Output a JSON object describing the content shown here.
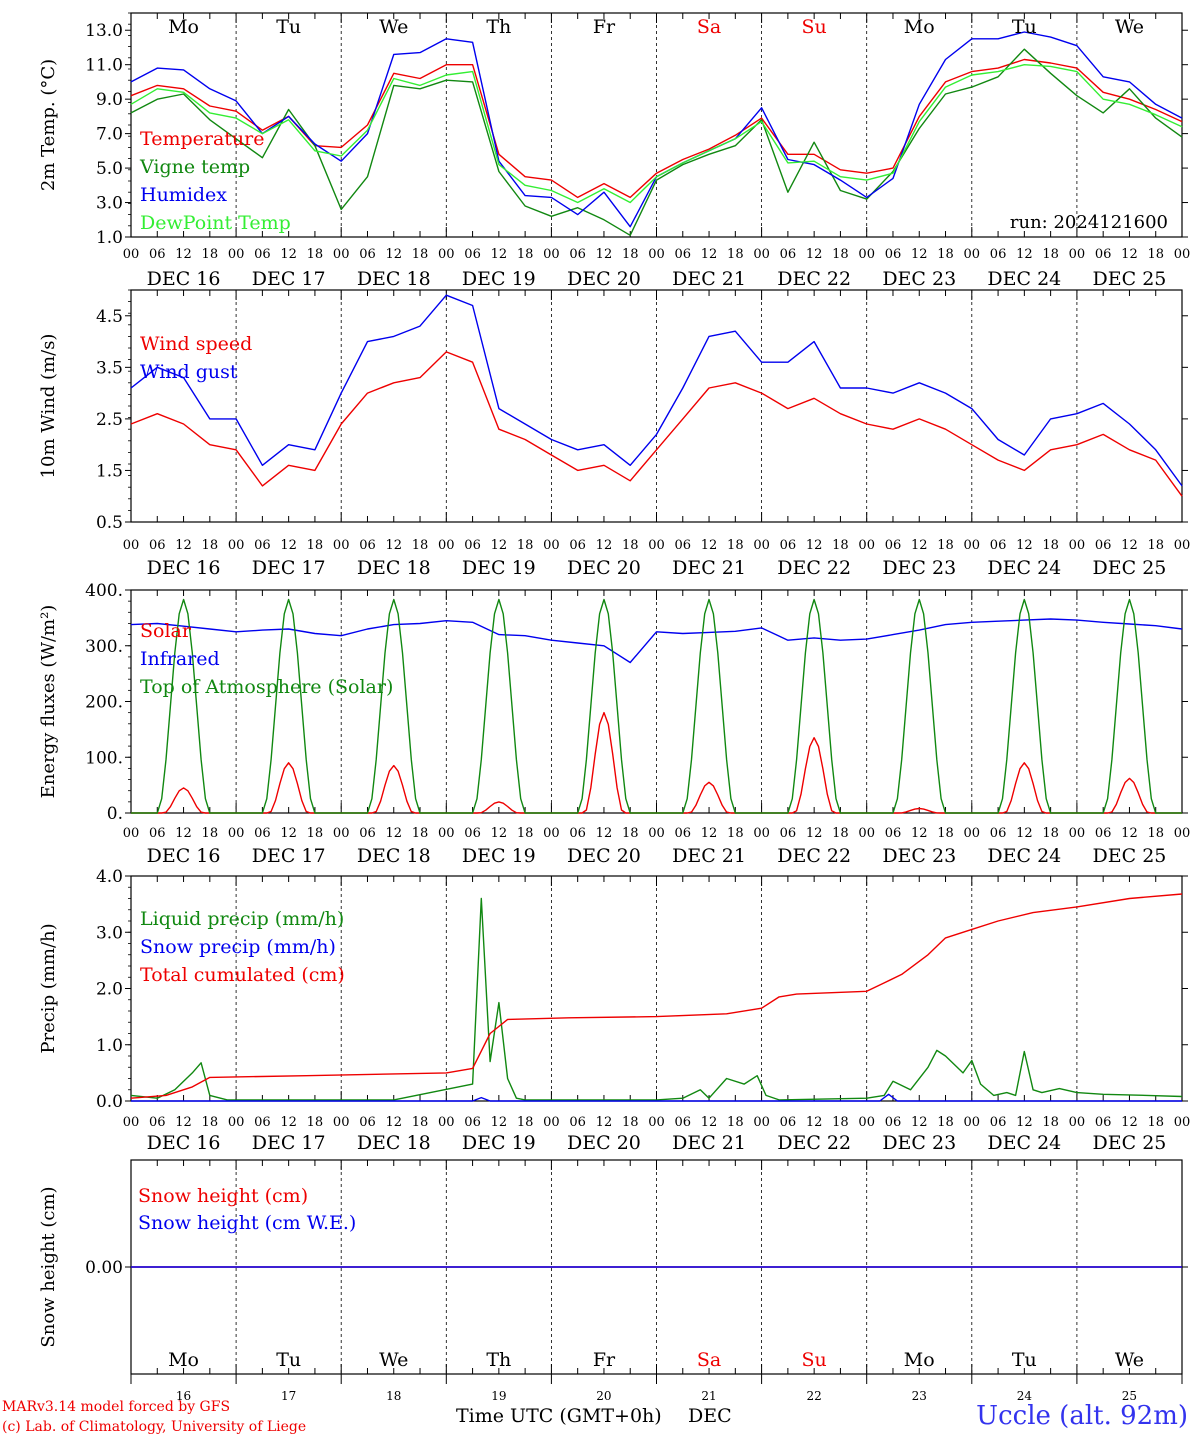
{
  "colors": {
    "red": "#ee0000",
    "green": "#118811",
    "blue": "#0000ee",
    "lightgreen": "#33ee33",
    "axis": "#000000"
  },
  "footer": {
    "model": "MARv3.14 model forced by GFS",
    "copyright": "(c) Lab. of Climatology, University of Liege",
    "xlabel": "Time UTC (GMT+0h)",
    "month": "DEC",
    "station": "Uccle (alt. 92m)"
  },
  "shared_axis": {
    "hour_ticks": [
      "00",
      "06",
      "12",
      "18"
    ],
    "final_tick": "00",
    "date_labels": [
      "DEC 16",
      "DEC 17",
      "DEC 18",
      "DEC 19",
      "DEC 20",
      "DEC 21",
      "DEC 22",
      "DEC 23",
      "DEC 24",
      "DEC 25"
    ],
    "weekdays": [
      "Mo",
      "Tu",
      "We",
      "Th",
      "Fr",
      "Sa",
      "Su",
      "Mo",
      "Tu",
      "We"
    ],
    "weekend": [
      false,
      false,
      false,
      false,
      false,
      true,
      true,
      false,
      false,
      false
    ],
    "day_numbers": [
      "16",
      "17",
      "18",
      "19",
      "20",
      "21",
      "22",
      "23",
      "24",
      "25"
    ]
  },
  "chart_data": [
    {
      "type": "line",
      "id": "temp",
      "ylabel": "2m Temp. (°C)",
      "ylim": [
        1,
        14
      ],
      "yticks": [
        "1.0",
        "3.0",
        "5.0",
        "7.0",
        "9.0",
        "11.0",
        "13.0"
      ],
      "annotation": "run: 2024121600",
      "x_hours": [
        0,
        6,
        12,
        18,
        24,
        30,
        36,
        42,
        48,
        54,
        60,
        66,
        72,
        78,
        84,
        90,
        96,
        102,
        108,
        114,
        120,
        126,
        132,
        138,
        144,
        150,
        156,
        162,
        168,
        174,
        180,
        186,
        192,
        198,
        204,
        210,
        216,
        222,
        228,
        234,
        240
      ],
      "series": [
        {
          "name": "Temperature",
          "color": "red",
          "values": [
            9.2,
            9.8,
            9.6,
            8.6,
            8.3,
            7.2,
            8.0,
            6.3,
            6.2,
            7.5,
            10.5,
            10.2,
            11.0,
            11.0,
            5.8,
            4.5,
            4.3,
            3.3,
            4.1,
            3.3,
            4.7,
            5.5,
            6.1,
            6.9,
            7.9,
            5.8,
            5.8,
            4.9,
            4.7,
            5.0,
            8.0,
            10.0,
            10.6,
            10.8,
            11.3,
            11.1,
            10.8,
            9.4,
            9.0,
            8.4,
            7.7
          ]
        },
        {
          "name": "Vigne temp",
          "color": "green",
          "values": [
            8.2,
            9.0,
            9.3,
            7.8,
            6.7,
            5.6,
            8.4,
            6.3,
            2.6,
            4.5,
            9.8,
            9.6,
            10.1,
            10.0,
            4.8,
            2.8,
            2.2,
            2.7,
            2.0,
            1.1,
            4.3,
            5.2,
            5.8,
            6.3,
            7.8,
            3.6,
            6.5,
            3.7,
            3.2,
            4.8,
            7.3,
            9.3,
            9.7,
            10.3,
            11.9,
            10.5,
            9.2,
            8.2,
            9.6,
            7.9,
            6.8
          ]
        },
        {
          "name": "Humidex",
          "color": "blue",
          "values": [
            10.0,
            10.8,
            10.7,
            9.6,
            8.9,
            7.0,
            8.0,
            6.4,
            5.4,
            7.0,
            11.6,
            11.7,
            12.5,
            12.3,
            5.4,
            3.4,
            3.3,
            2.3,
            3.6,
            1.6,
            4.5,
            5.3,
            6.0,
            6.7,
            8.5,
            5.5,
            5.2,
            4.3,
            3.3,
            4.4,
            8.7,
            11.3,
            12.5,
            12.5,
            12.9,
            12.6,
            12.1,
            10.3,
            10.0,
            8.7,
            7.9
          ]
        },
        {
          "name": "DewPoint Temp",
          "color": "lightgreen",
          "values": [
            8.7,
            9.6,
            9.4,
            8.2,
            7.9,
            7.0,
            7.8,
            6.0,
            5.7,
            7.2,
            10.2,
            9.8,
            10.4,
            10.6,
            5.2,
            4.0,
            3.7,
            3.0,
            3.8,
            3.0,
            4.5,
            5.3,
            6.0,
            6.7,
            7.7,
            5.3,
            5.4,
            4.5,
            4.3,
            4.7,
            7.7,
            9.7,
            10.4,
            10.6,
            11.0,
            10.9,
            10.6,
            9.0,
            8.7,
            8.1,
            7.4
          ]
        }
      ]
    },
    {
      "type": "line",
      "id": "wind",
      "ylabel": "10m Wind (m/s)",
      "ylim": [
        0.5,
        5.0
      ],
      "yticks": [
        "0.5",
        "1.5",
        "2.5",
        "3.5",
        "4.5"
      ],
      "x_hours": [
        0,
        6,
        12,
        18,
        24,
        30,
        36,
        42,
        48,
        54,
        60,
        66,
        72,
        78,
        84,
        90,
        96,
        102,
        108,
        114,
        120,
        126,
        132,
        138,
        144,
        150,
        156,
        162,
        168,
        174,
        180,
        186,
        192,
        198,
        204,
        210,
        216,
        222,
        228,
        234,
        240
      ],
      "series": [
        {
          "name": "Wind speed",
          "color": "red",
          "values": [
            2.4,
            2.6,
            2.4,
            2.0,
            1.9,
            1.2,
            1.6,
            1.5,
            2.4,
            3.0,
            3.2,
            3.3,
            3.8,
            3.6,
            2.3,
            2.1,
            1.8,
            1.5,
            1.6,
            1.3,
            1.9,
            2.5,
            3.1,
            3.2,
            3.0,
            2.7,
            2.9,
            2.6,
            2.4,
            2.3,
            2.5,
            2.3,
            2.0,
            1.7,
            1.5,
            1.9,
            2.0,
            2.2,
            1.9,
            1.7,
            1.0
          ]
        },
        {
          "name": "Wind gust",
          "color": "blue",
          "values": [
            3.1,
            3.5,
            3.3,
            2.5,
            2.5,
            1.6,
            2.0,
            1.9,
            3.0,
            4.0,
            4.1,
            4.3,
            4.9,
            4.7,
            2.7,
            2.4,
            2.1,
            1.9,
            2.0,
            1.6,
            2.2,
            3.1,
            4.1,
            4.2,
            3.6,
            3.6,
            4.0,
            3.1,
            3.1,
            3.0,
            3.2,
            3.0,
            2.7,
            2.1,
            1.8,
            2.5,
            2.6,
            2.8,
            2.4,
            1.9,
            1.2
          ]
        }
      ]
    },
    {
      "type": "line",
      "id": "energy",
      "ylabel": "Energy fluxes (W/m²)",
      "ylim": [
        0,
        400
      ],
      "yticks": [
        "0.",
        "100.",
        "200.",
        "300.",
        "400."
      ],
      "series": [
        {
          "name": "Solar",
          "color": "red",
          "day_peaks": [
            45,
            90,
            85,
            20,
            180,
            55,
            135,
            8,
            90,
            62
          ]
        },
        {
          "name": "Infrared",
          "color": "blue",
          "x_hours": [
            0,
            6,
            12,
            18,
            24,
            30,
            36,
            42,
            48,
            54,
            60,
            66,
            72,
            78,
            84,
            90,
            96,
            102,
            108,
            114,
            120,
            126,
            132,
            138,
            144,
            150,
            156,
            162,
            168,
            174,
            180,
            186,
            192,
            198,
            204,
            210,
            216,
            222,
            228,
            234,
            240
          ],
          "values": [
            338,
            340,
            335,
            330,
            325,
            328,
            330,
            322,
            318,
            330,
            338,
            340,
            345,
            342,
            320,
            318,
            310,
            305,
            300,
            270,
            325,
            322,
            324,
            326,
            332,
            310,
            314,
            310,
            312,
            320,
            328,
            338,
            342,
            344,
            346,
            348,
            346,
            342,
            339,
            336,
            330
          ]
        },
        {
          "name": "Top of Atmosphere (Solar)",
          "color": "green",
          "day_peaks": [
            383,
            383,
            383,
            383,
            383,
            383,
            383,
            383,
            383,
            383
          ]
        }
      ]
    },
    {
      "type": "line",
      "id": "precip",
      "ylabel": "Precip (mm/h)",
      "ylim": [
        0,
        4
      ],
      "yticks": [
        "0.0",
        "1.0",
        "2.0",
        "3.0",
        "4.0"
      ],
      "series": [
        {
          "name": "Liquid precip (mm/h)",
          "color": "green",
          "points": [
            [
              0,
              0.1
            ],
            [
              6,
              0.05
            ],
            [
              10,
              0.2
            ],
            [
              14,
              0.5
            ],
            [
              16,
              0.68
            ],
            [
              18,
              0.1
            ],
            [
              22,
              0.02
            ],
            [
              60,
              0.02
            ],
            [
              78,
              0.3
            ],
            [
              80,
              3.6
            ],
            [
              82,
              0.7
            ],
            [
              84,
              1.75
            ],
            [
              86,
              0.4
            ],
            [
              88,
              0.05
            ],
            [
              90,
              0.02
            ],
            [
              120,
              0.02
            ],
            [
              126,
              0.05
            ],
            [
              130,
              0.2
            ],
            [
              132,
              0.05
            ],
            [
              136,
              0.4
            ],
            [
              140,
              0.3
            ],
            [
              143,
              0.45
            ],
            [
              145,
              0.1
            ],
            [
              148,
              0.02
            ],
            [
              168,
              0.05
            ],
            [
              172,
              0.1
            ],
            [
              174,
              0.35
            ],
            [
              178,
              0.2
            ],
            [
              182,
              0.6
            ],
            [
              184,
              0.9
            ],
            [
              186,
              0.8
            ],
            [
              190,
              0.5
            ],
            [
              192,
              0.72
            ],
            [
              194,
              0.3
            ],
            [
              197,
              0.1
            ],
            [
              200,
              0.15
            ],
            [
              202,
              0.1
            ],
            [
              204,
              0.88
            ],
            [
              206,
              0.2
            ],
            [
              208,
              0.15
            ],
            [
              212,
              0.22
            ],
            [
              216,
              0.15
            ],
            [
              222,
              0.12
            ],
            [
              232,
              0.1
            ],
            [
              240,
              0.08
            ]
          ]
        },
        {
          "name": "Snow precip (mm/h)",
          "color": "blue",
          "points": [
            [
              0,
              0.0
            ],
            [
              78,
              0.0
            ],
            [
              80,
              0.06
            ],
            [
              82,
              0.0
            ],
            [
              171,
              0.0
            ],
            [
              173,
              0.12
            ],
            [
              175,
              0.0
            ],
            [
              240,
              0.0
            ]
          ]
        },
        {
          "name": "Total cumulated (cm)",
          "color": "red",
          "points": [
            [
              0,
              0.05
            ],
            [
              8,
              0.1
            ],
            [
              14,
              0.25
            ],
            [
              18,
              0.42
            ],
            [
              40,
              0.45
            ],
            [
              72,
              0.5
            ],
            [
              78,
              0.58
            ],
            [
              82,
              1.2
            ],
            [
              86,
              1.45
            ],
            [
              100,
              1.48
            ],
            [
              120,
              1.5
            ],
            [
              136,
              1.55
            ],
            [
              144,
              1.65
            ],
            [
              148,
              1.85
            ],
            [
              152,
              1.9
            ],
            [
              168,
              1.95
            ],
            [
              172,
              2.1
            ],
            [
              176,
              2.25
            ],
            [
              182,
              2.6
            ],
            [
              186,
              2.9
            ],
            [
              192,
              3.05
            ],
            [
              198,
              3.2
            ],
            [
              206,
              3.35
            ],
            [
              216,
              3.45
            ],
            [
              228,
              3.6
            ],
            [
              240,
              3.68
            ]
          ]
        }
      ]
    },
    {
      "type": "line",
      "id": "snow",
      "ylabel": "Snow height (cm)",
      "ylim": [
        -1,
        1
      ],
      "yticks": [
        "0.00"
      ],
      "series": [
        {
          "name": "Snow height (cm)",
          "color": "red",
          "values": [
            0,
            0
          ]
        },
        {
          "name": "Snow height (cm W.E.)",
          "color": "blue",
          "values": [
            0,
            0
          ]
        }
      ]
    }
  ]
}
